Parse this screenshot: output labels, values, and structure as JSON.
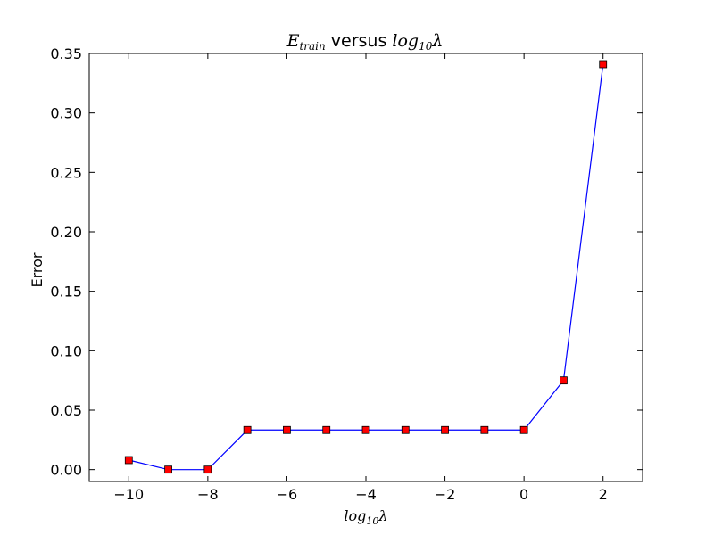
{
  "chart_data": {
    "type": "line",
    "title": {
      "math_base": "E",
      "math_sub": "train",
      "text": " versus ",
      "math_tail": "log",
      "math_tail_sub": "10",
      "math_tail_symbol": "λ"
    },
    "xlabel": {
      "base": "log",
      "sub": "10",
      "symbol": "λ"
    },
    "ylabel": "Error",
    "xlim": [
      -11,
      3
    ],
    "ylim": [
      -0.01,
      0.35
    ],
    "x_ticks": [
      -10,
      -8,
      -6,
      -4,
      -2,
      0,
      2
    ],
    "x_tick_labels": [
      "−10",
      "−8",
      "−6",
      "−4",
      "−2",
      "0",
      "2"
    ],
    "y_ticks": [
      0.0,
      0.05,
      0.1,
      0.15,
      0.2,
      0.25,
      0.3,
      0.35
    ],
    "y_tick_labels": [
      "0.00",
      "0.05",
      "0.10",
      "0.15",
      "0.20",
      "0.25",
      "0.30",
      "0.35"
    ],
    "grid": false,
    "series": [
      {
        "x": [
          -10,
          -9,
          -8,
          -7,
          -6,
          -5,
          -4,
          -3,
          -2,
          -1,
          0,
          1,
          2
        ],
        "y": [
          0.008,
          0.0,
          0.0,
          0.0333,
          0.0333,
          0.0333,
          0.0333,
          0.0333,
          0.0333,
          0.0333,
          0.0333,
          0.075,
          0.341
        ],
        "line_color": "#0000ff",
        "marker": "square",
        "marker_color": "#ff0000"
      }
    ]
  }
}
